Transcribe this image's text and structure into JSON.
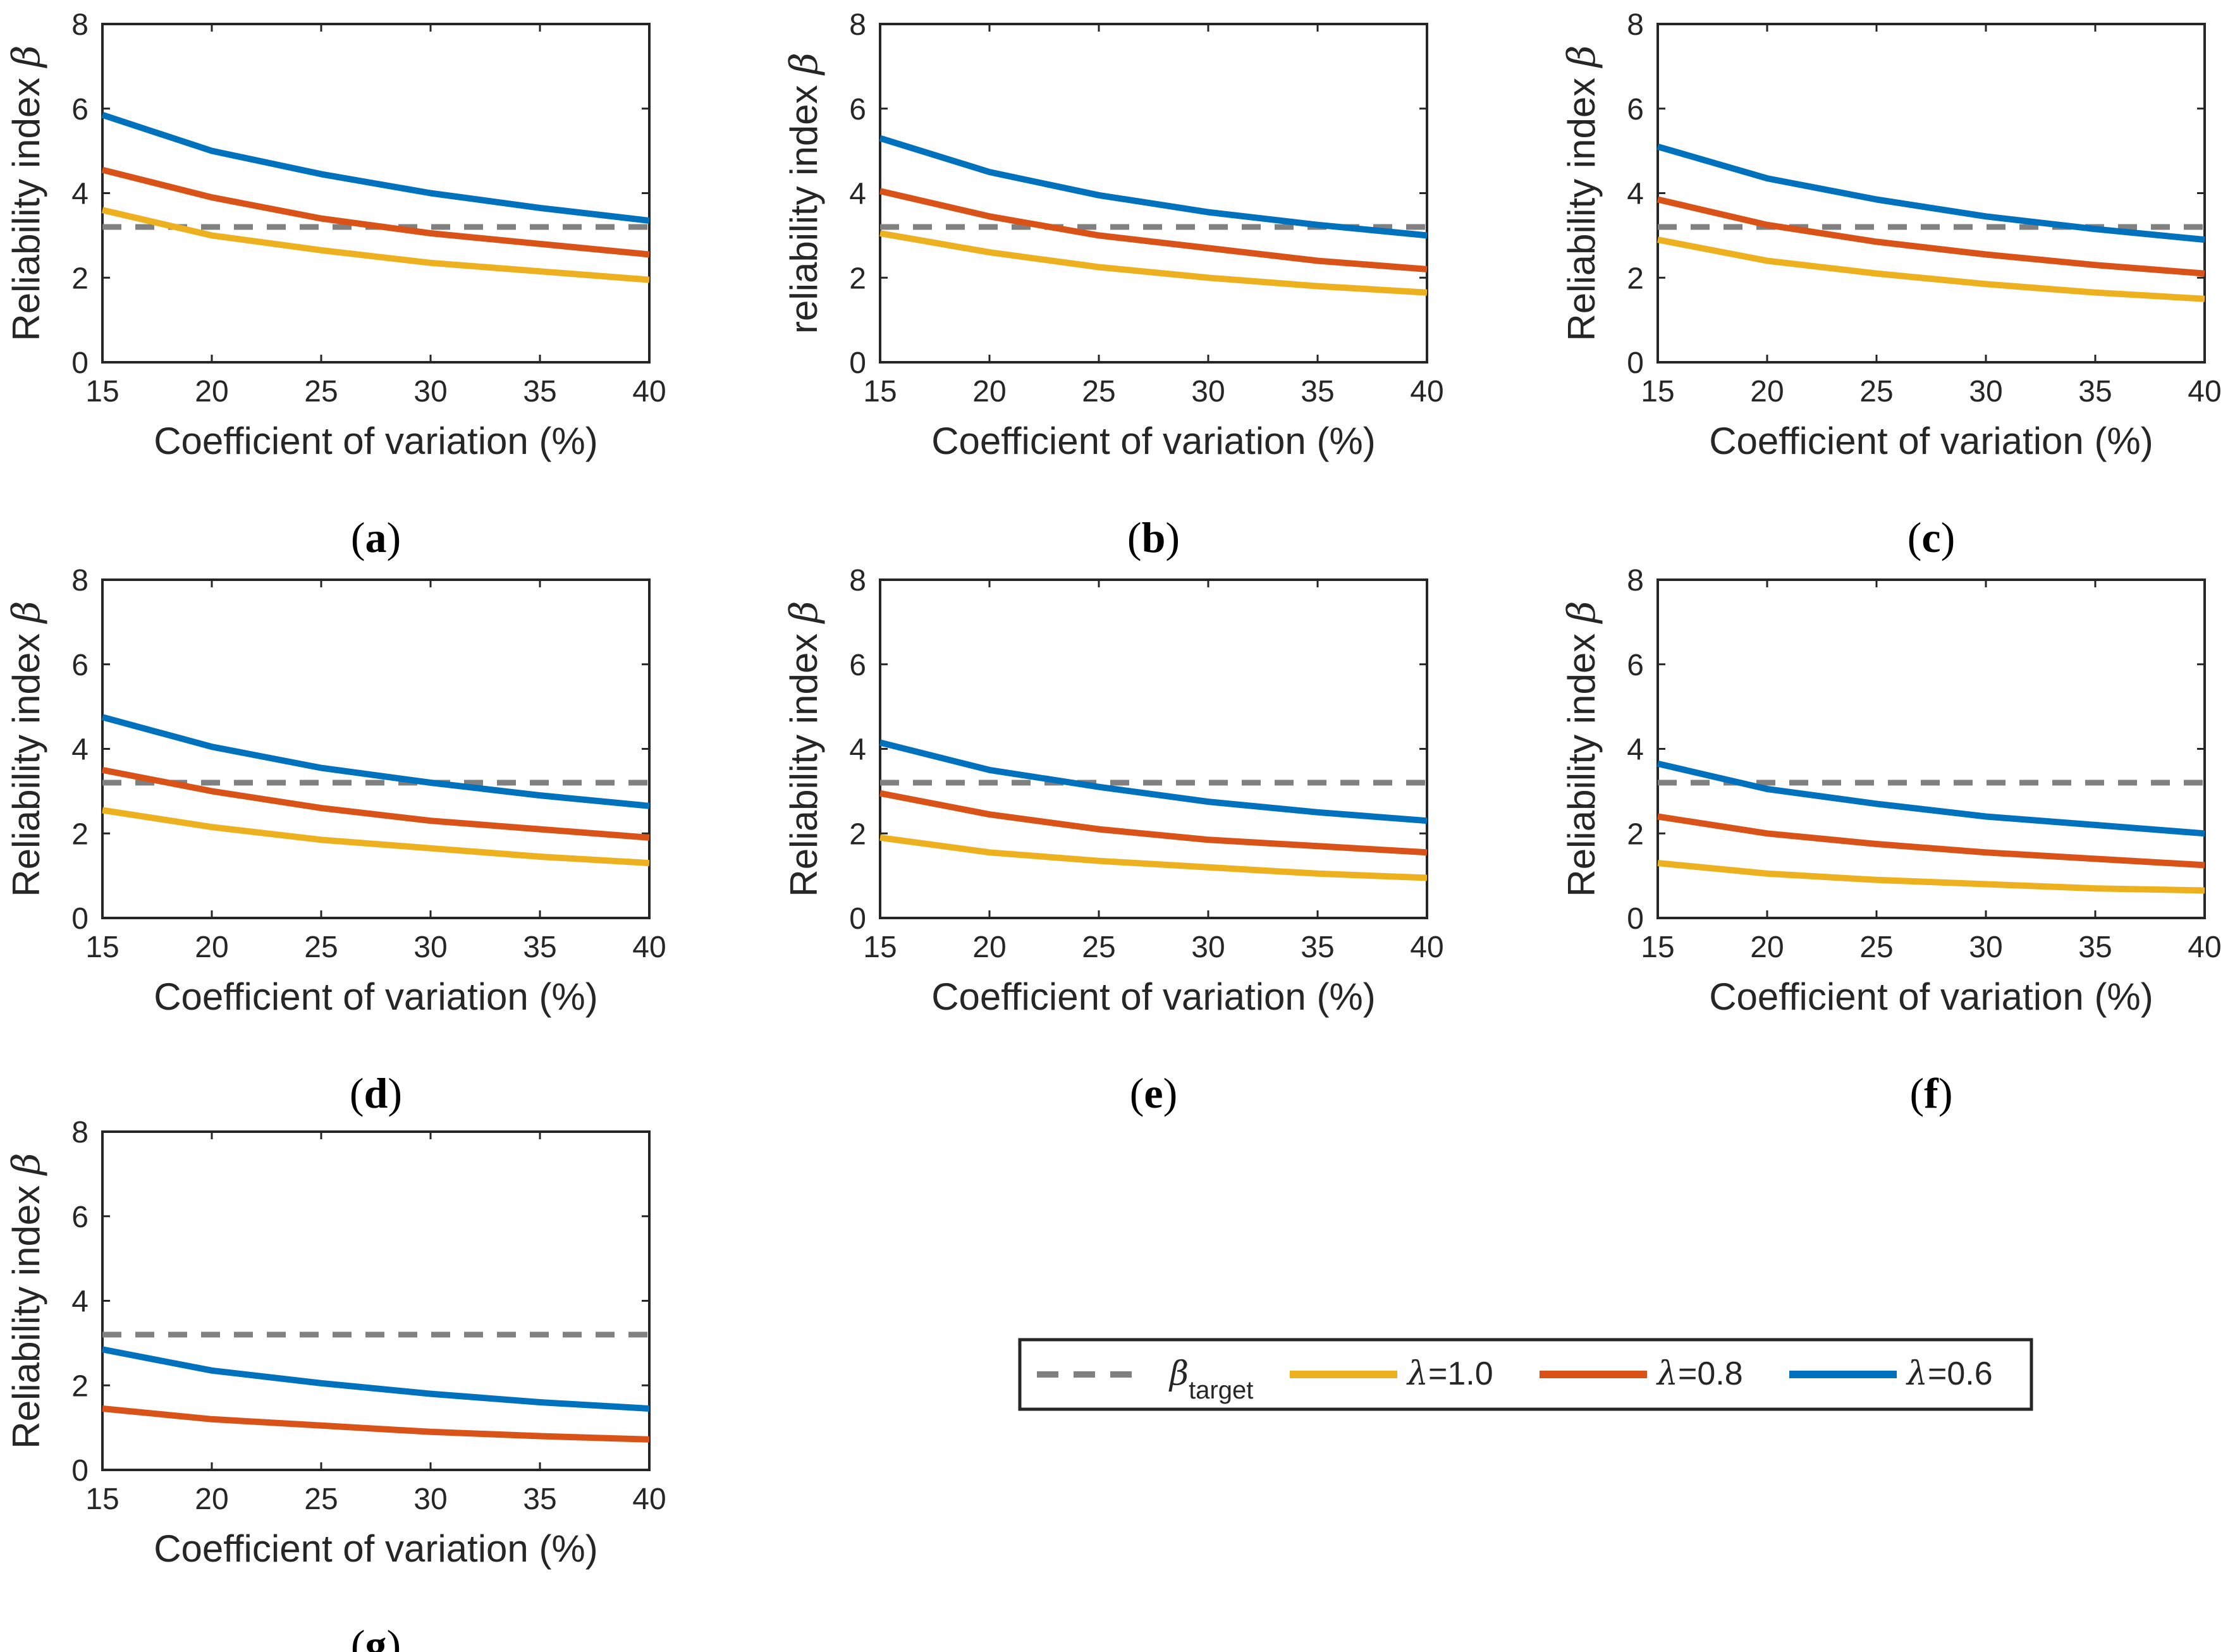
{
  "chart_data": [
    {
      "panel": "a",
      "caption": "a",
      "type": "line",
      "xlabel": "Coefficient of variation (%)",
      "ylabel": "Reliability index",
      "ylabel_symbol": "β",
      "x": [
        15,
        20,
        25,
        30,
        35,
        40
      ],
      "xlim": [
        15,
        40
      ],
      "ylim": [
        0,
        8
      ],
      "xticks": [
        15,
        20,
        25,
        30,
        35,
        40
      ],
      "yticks": [
        0,
        2,
        4,
        6,
        8
      ],
      "beta_target": 3.2,
      "series": [
        {
          "name": "λ=1.0",
          "values": [
            3.6,
            3.0,
            2.65,
            2.35,
            2.15,
            1.95
          ]
        },
        {
          "name": "λ=0.8",
          "values": [
            4.55,
            3.9,
            3.4,
            3.05,
            2.8,
            2.55
          ]
        },
        {
          "name": "λ=0.6",
          "values": [
            5.85,
            5.0,
            4.45,
            4.0,
            3.65,
            3.35
          ]
        }
      ]
    },
    {
      "panel": "b",
      "caption": "b",
      "type": "line",
      "xlabel": "Coefficient of variation (%)",
      "ylabel": "reliability index",
      "ylabel_symbol": "β",
      "x": [
        15,
        20,
        25,
        30,
        35,
        40
      ],
      "xlim": [
        15,
        40
      ],
      "ylim": [
        0,
        8
      ],
      "xticks": [
        15,
        20,
        25,
        30,
        35,
        40
      ],
      "yticks": [
        0,
        2,
        4,
        6,
        8
      ],
      "beta_target": 3.2,
      "series": [
        {
          "name": "λ=1.0",
          "values": [
            3.05,
            2.6,
            2.25,
            2.0,
            1.8,
            1.65
          ]
        },
        {
          "name": "λ=0.8",
          "values": [
            4.05,
            3.45,
            3.0,
            2.7,
            2.4,
            2.2
          ]
        },
        {
          "name": "λ=0.6",
          "values": [
            5.3,
            4.5,
            3.95,
            3.55,
            3.25,
            3.0
          ]
        }
      ]
    },
    {
      "panel": "c",
      "caption": "c",
      "type": "line",
      "xlabel": "Coefficient of variation (%)",
      "ylabel": "Reliability index",
      "ylabel_symbol": "β",
      "x": [
        15,
        20,
        25,
        30,
        35,
        40
      ],
      "xlim": [
        15,
        40
      ],
      "ylim": [
        0,
        8
      ],
      "xticks": [
        15,
        20,
        25,
        30,
        35,
        40
      ],
      "yticks": [
        0,
        2,
        4,
        6,
        8
      ],
      "beta_target": 3.2,
      "series": [
        {
          "name": "λ=1.0",
          "values": [
            2.9,
            2.4,
            2.1,
            1.85,
            1.65,
            1.5
          ]
        },
        {
          "name": "λ=0.8",
          "values": [
            3.85,
            3.25,
            2.85,
            2.55,
            2.3,
            2.1
          ]
        },
        {
          "name": "λ=0.6",
          "values": [
            5.1,
            4.35,
            3.85,
            3.45,
            3.15,
            2.9
          ]
        }
      ]
    },
    {
      "panel": "d",
      "caption": "d",
      "type": "line",
      "xlabel": "Coefficient of variation (%)",
      "ylabel": "Reliability index",
      "ylabel_symbol": "β",
      "x": [
        15,
        20,
        25,
        30,
        35,
        40
      ],
      "xlim": [
        15,
        40
      ],
      "ylim": [
        0,
        8
      ],
      "xticks": [
        15,
        20,
        25,
        30,
        35,
        40
      ],
      "yticks": [
        0,
        2,
        4,
        6,
        8
      ],
      "beta_target": 3.2,
      "series": [
        {
          "name": "λ=1.0",
          "values": [
            2.55,
            2.15,
            1.85,
            1.65,
            1.45,
            1.3
          ]
        },
        {
          "name": "λ=0.8",
          "values": [
            3.5,
            3.0,
            2.6,
            2.3,
            2.1,
            1.9
          ]
        },
        {
          "name": "λ=0.6",
          "values": [
            4.75,
            4.05,
            3.55,
            3.2,
            2.9,
            2.65
          ]
        }
      ]
    },
    {
      "panel": "e",
      "caption": "e",
      "type": "line",
      "xlabel": "Coefficient of variation (%)",
      "ylabel": "Reliability index",
      "ylabel_symbol": "β",
      "x": [
        15,
        20,
        25,
        30,
        35,
        40
      ],
      "xlim": [
        15,
        40
      ],
      "ylim": [
        0,
        8
      ],
      "xticks": [
        15,
        20,
        25,
        30,
        35,
        40
      ],
      "yticks": [
        0,
        2,
        4,
        6,
        8
      ],
      "beta_target": 3.2,
      "series": [
        {
          "name": "λ=1.0",
          "values": [
            1.9,
            1.55,
            1.35,
            1.2,
            1.05,
            0.95
          ]
        },
        {
          "name": "λ=0.8",
          "values": [
            2.95,
            2.45,
            2.1,
            1.85,
            1.7,
            1.55
          ]
        },
        {
          "name": "λ=0.6",
          "values": [
            4.15,
            3.5,
            3.1,
            2.75,
            2.5,
            2.3
          ]
        }
      ]
    },
    {
      "panel": "f",
      "caption": "f",
      "type": "line",
      "xlabel": "Coefficient of variation (%)",
      "ylabel": "Reliability index",
      "ylabel_symbol": "β",
      "x": [
        15,
        20,
        25,
        30,
        35,
        40
      ],
      "xlim": [
        15,
        40
      ],
      "ylim": [
        0,
        8
      ],
      "xticks": [
        15,
        20,
        25,
        30,
        35,
        40
      ],
      "yticks": [
        0,
        2,
        4,
        6,
        8
      ],
      "beta_target": 3.2,
      "series": [
        {
          "name": "λ=1.0",
          "values": [
            1.3,
            1.05,
            0.9,
            0.8,
            0.7,
            0.65
          ]
        },
        {
          "name": "λ=0.8",
          "values": [
            2.4,
            2.0,
            1.75,
            1.55,
            1.4,
            1.25
          ]
        },
        {
          "name": "λ=0.6",
          "values": [
            3.65,
            3.05,
            2.7,
            2.4,
            2.2,
            2.0
          ]
        }
      ]
    },
    {
      "panel": "g",
      "caption": "g",
      "type": "line",
      "xlabel": "Coefficient of variation (%)",
      "ylabel": "Reliability index",
      "ylabel_symbol": "β",
      "x": [
        15,
        20,
        25,
        30,
        35,
        40
      ],
      "xlim": [
        15,
        40
      ],
      "ylim": [
        0,
        8
      ],
      "xticks": [
        15,
        20,
        25,
        30,
        35,
        40
      ],
      "yticks": [
        0,
        2,
        4,
        6,
        8
      ],
      "beta_target": 3.2,
      "series": [
        {
          "name": "λ=0.8",
          "values": [
            1.45,
            1.2,
            1.05,
            0.9,
            0.8,
            0.72
          ]
        },
        {
          "name": "λ=0.6",
          "values": [
            2.85,
            2.35,
            2.05,
            1.8,
            1.6,
            1.45
          ]
        }
      ]
    }
  ],
  "legend": {
    "target_symbol": "β",
    "target_subscript": "target",
    "entries": [
      {
        "name": "λ=1.0",
        "symbol": "λ",
        "rest": "=1.0",
        "color": "#EDB120"
      },
      {
        "name": "λ=0.8",
        "symbol": "λ",
        "rest": "=0.8",
        "color": "#D95319"
      },
      {
        "name": "λ=0.6",
        "symbol": "λ",
        "rest": "=0.6",
        "color": "#0072BD"
      }
    ],
    "target_color": "#808080"
  },
  "colors": {
    "λ=1.0": "#EDB120",
    "λ=0.8": "#D95319",
    "λ=0.6": "#0072BD",
    "target": "#808080",
    "axis": "#262626"
  }
}
